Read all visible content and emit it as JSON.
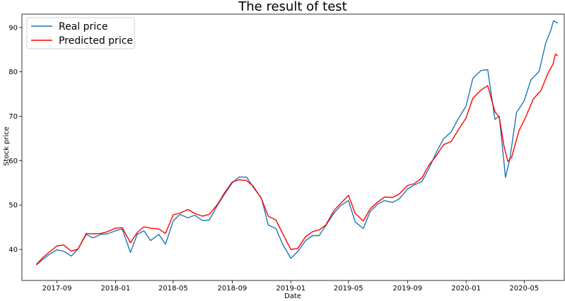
{
  "chart_data": {
    "type": "line",
    "title": "The result of test",
    "xlabel": "Date",
    "ylabel": "Stock price",
    "xlim": [
      "2017-06-20",
      "2020-07-25"
    ],
    "ylim": [
      33,
      93
    ],
    "x_ticks": [
      "2017-09",
      "2018-01",
      "2018-05",
      "2018-09",
      "2019-01",
      "2019-05",
      "2019-09",
      "2020-01",
      "2020-05"
    ],
    "y_ticks": [
      40,
      50,
      60,
      70,
      80,
      90
    ],
    "grid": false,
    "legend_position": "top-left",
    "series": [
      {
        "name": "Real price",
        "color": "#1f77b4",
        "points": [
          [
            "2017-07-20",
            36.5
          ],
          [
            "2017-08-01",
            37.6
          ],
          [
            "2017-08-15",
            38.8
          ],
          [
            "2017-09-01",
            39.9
          ],
          [
            "2017-09-15",
            39.6
          ],
          [
            "2017-10-01",
            38.5
          ],
          [
            "2017-10-15",
            40.1
          ],
          [
            "2017-11-01",
            43.4
          ],
          [
            "2017-11-15",
            42.6
          ],
          [
            "2017-12-01",
            43.4
          ],
          [
            "2017-12-15",
            43.5
          ],
          [
            "2018-01-01",
            44.2
          ],
          [
            "2018-01-15",
            44.6
          ],
          [
            "2018-02-01",
            39.3
          ],
          [
            "2018-02-15",
            43.4
          ],
          [
            "2018-03-01",
            44.2
          ],
          [
            "2018-03-15",
            42.0
          ],
          [
            "2018-04-01",
            43.4
          ],
          [
            "2018-04-15",
            41.2
          ],
          [
            "2018-05-01",
            46.4
          ],
          [
            "2018-05-15",
            47.9
          ],
          [
            "2018-06-01",
            47.1
          ],
          [
            "2018-06-15",
            47.7
          ],
          [
            "2018-07-01",
            46.5
          ],
          [
            "2018-07-15",
            46.6
          ],
          [
            "2018-08-01",
            49.9
          ],
          [
            "2018-08-15",
            52.3
          ],
          [
            "2018-09-01",
            55.0
          ],
          [
            "2018-09-15",
            56.3
          ],
          [
            "2018-10-01",
            56.3
          ],
          [
            "2018-10-15",
            54.0
          ],
          [
            "2018-11-01",
            51.5
          ],
          [
            "2018-11-15",
            45.5
          ],
          [
            "2018-12-01",
            44.7
          ],
          [
            "2018-12-15",
            41.2
          ],
          [
            "2019-01-01",
            38.0
          ],
          [
            "2019-01-15",
            39.5
          ],
          [
            "2019-02-01",
            42.0
          ],
          [
            "2019-02-15",
            43.1
          ],
          [
            "2019-03-01",
            43.1
          ],
          [
            "2019-03-15",
            45.4
          ],
          [
            "2019-04-01",
            48.2
          ],
          [
            "2019-04-15",
            49.9
          ],
          [
            "2019-05-01",
            51.0
          ],
          [
            "2019-05-15",
            46.2
          ],
          [
            "2019-06-01",
            44.7
          ],
          [
            "2019-06-15",
            48.5
          ],
          [
            "2019-07-01",
            50.2
          ],
          [
            "2019-07-15",
            51.0
          ],
          [
            "2019-08-01",
            50.6
          ],
          [
            "2019-08-15",
            51.4
          ],
          [
            "2019-09-01",
            53.6
          ],
          [
            "2019-09-15",
            54.5
          ],
          [
            "2019-10-01",
            55.3
          ],
          [
            "2019-10-15",
            58.1
          ],
          [
            "2019-11-01",
            62.1
          ],
          [
            "2019-11-15",
            64.9
          ],
          [
            "2019-12-01",
            66.5
          ],
          [
            "2019-12-15",
            69.3
          ],
          [
            "2020-01-01",
            72.3
          ],
          [
            "2020-01-15",
            78.5
          ],
          [
            "2020-02-01",
            80.3
          ],
          [
            "2020-02-15",
            80.5
          ],
          [
            "2020-03-01",
            69.3
          ],
          [
            "2020-03-10",
            70.0
          ],
          [
            "2020-03-20",
            59.5
          ],
          [
            "2020-03-23",
            56.2
          ],
          [
            "2020-04-01",
            60.3
          ],
          [
            "2020-04-15",
            70.8
          ],
          [
            "2020-05-01",
            73.5
          ],
          [
            "2020-05-15",
            78.2
          ],
          [
            "2020-06-01",
            80.1
          ],
          [
            "2020-06-15",
            86.5
          ],
          [
            "2020-06-25",
            89.2
          ],
          [
            "2020-07-01",
            91.5
          ],
          [
            "2020-07-10",
            91.0
          ]
        ]
      },
      {
        "name": "Predicted price",
        "color": "#ff0000",
        "points": [
          [
            "2017-07-20",
            36.6
          ],
          [
            "2017-08-01",
            38.0
          ],
          [
            "2017-08-15",
            39.3
          ],
          [
            "2017-09-01",
            40.8
          ],
          [
            "2017-09-15",
            41.0
          ],
          [
            "2017-10-01",
            39.6
          ],
          [
            "2017-10-15",
            40.1
          ],
          [
            "2017-11-01",
            43.6
          ],
          [
            "2017-11-15",
            43.5
          ],
          [
            "2017-12-01",
            43.6
          ],
          [
            "2017-12-15",
            44.0
          ],
          [
            "2018-01-01",
            44.8
          ],
          [
            "2018-01-15",
            44.9
          ],
          [
            "2018-02-01",
            41.5
          ],
          [
            "2018-02-15",
            43.8
          ],
          [
            "2018-03-01",
            45.1
          ],
          [
            "2018-03-15",
            44.8
          ],
          [
            "2018-04-01",
            44.6
          ],
          [
            "2018-04-15",
            43.6
          ],
          [
            "2018-05-01",
            47.8
          ],
          [
            "2018-05-15",
            48.2
          ],
          [
            "2018-06-01",
            49.0
          ],
          [
            "2018-06-15",
            48.1
          ],
          [
            "2018-07-01",
            47.5
          ],
          [
            "2018-07-15",
            47.9
          ],
          [
            "2018-08-01",
            50.1
          ],
          [
            "2018-08-15",
            52.6
          ],
          [
            "2018-09-01",
            55.2
          ],
          [
            "2018-09-15",
            55.7
          ],
          [
            "2018-10-01",
            55.5
          ],
          [
            "2018-10-15",
            54.2
          ],
          [
            "2018-11-01",
            51.4
          ],
          [
            "2018-11-15",
            47.5
          ],
          [
            "2018-12-01",
            46.6
          ],
          [
            "2018-12-15",
            43.6
          ],
          [
            "2019-01-01",
            40.0
          ],
          [
            "2019-01-15",
            40.2
          ],
          [
            "2019-02-01",
            42.9
          ],
          [
            "2019-02-15",
            44.0
          ],
          [
            "2019-03-01",
            44.4
          ],
          [
            "2019-03-15",
            45.5
          ],
          [
            "2019-04-01",
            48.8
          ],
          [
            "2019-04-15",
            50.4
          ],
          [
            "2019-05-01",
            52.2
          ],
          [
            "2019-05-15",
            48.1
          ],
          [
            "2019-06-01",
            46.4
          ],
          [
            "2019-06-15",
            49.1
          ],
          [
            "2019-07-01",
            50.7
          ],
          [
            "2019-07-15",
            51.8
          ],
          [
            "2019-08-01",
            51.7
          ],
          [
            "2019-08-15",
            52.5
          ],
          [
            "2019-09-01",
            54.4
          ],
          [
            "2019-09-15",
            54.8
          ],
          [
            "2019-10-01",
            56.1
          ],
          [
            "2019-10-15",
            58.9
          ],
          [
            "2019-11-01",
            61.3
          ],
          [
            "2019-11-15",
            63.6
          ],
          [
            "2019-12-01",
            64.3
          ],
          [
            "2019-12-15",
            66.8
          ],
          [
            "2020-01-01",
            69.6
          ],
          [
            "2020-01-15",
            74.0
          ],
          [
            "2020-02-01",
            75.9
          ],
          [
            "2020-02-15",
            76.9
          ],
          [
            "2020-03-01",
            71.0
          ],
          [
            "2020-03-10",
            69.8
          ],
          [
            "2020-03-20",
            63.2
          ],
          [
            "2020-03-28",
            59.8
          ],
          [
            "2020-04-05",
            60.8
          ],
          [
            "2020-04-20",
            66.7
          ],
          [
            "2020-05-05",
            70.0
          ],
          [
            "2020-05-20",
            73.9
          ],
          [
            "2020-06-05",
            75.8
          ],
          [
            "2020-06-20",
            79.8
          ],
          [
            "2020-06-30",
            81.7
          ],
          [
            "2020-07-05",
            84.0
          ],
          [
            "2020-07-10",
            83.6
          ]
        ]
      }
    ]
  }
}
